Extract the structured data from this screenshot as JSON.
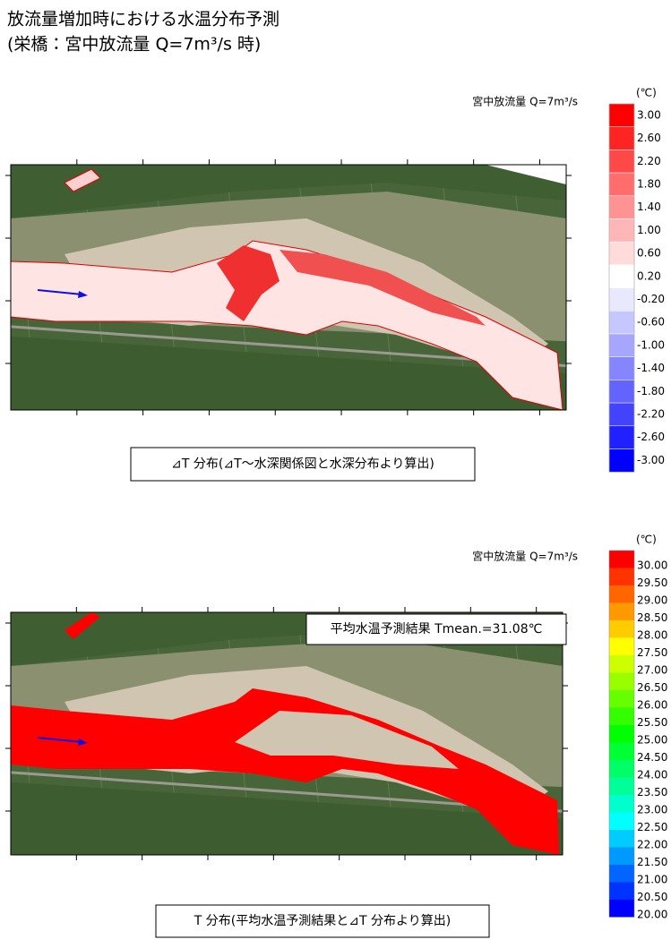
{
  "title": [
    "放流量増加時における水温分布予測",
    "(栄橋：宮中放流量 Q=7m³/s 時)"
  ],
  "panels": [
    {
      "label": "宮中放流量 Q=7m³/s",
      "unit": "(℃)",
      "colorbar": [
        "3.00",
        "2.60",
        "2.20",
        "1.80",
        "1.40",
        "1.00",
        "0.60",
        "0.20",
        "-0.20",
        "-0.60",
        "-1.00",
        "-1.40",
        "-1.80",
        "-2.20",
        "-2.60",
        "-3.00"
      ],
      "caption": "⊿T 分布(⊿T～水深関係図と水深分布より算出)"
    },
    {
      "label": "宮中放流量 Q=7m³/s",
      "unit": "(℃)",
      "annotation": "平均水温予測結果 Tmean.=31.08℃",
      "colorbar": [
        "30.00",
        "29.50",
        "29.00",
        "28.50",
        "28.00",
        "27.50",
        "27.00",
        "26.50",
        "26.00",
        "25.50",
        "25.00",
        "24.50",
        "24.00",
        "23.50",
        "23.00",
        "22.50",
        "22.00",
        "21.50",
        "21.00",
        "20.50",
        "20.00"
      ],
      "caption": "T 分布(平均水温予測結果と⊿T 分布より算出)"
    }
  ]
}
